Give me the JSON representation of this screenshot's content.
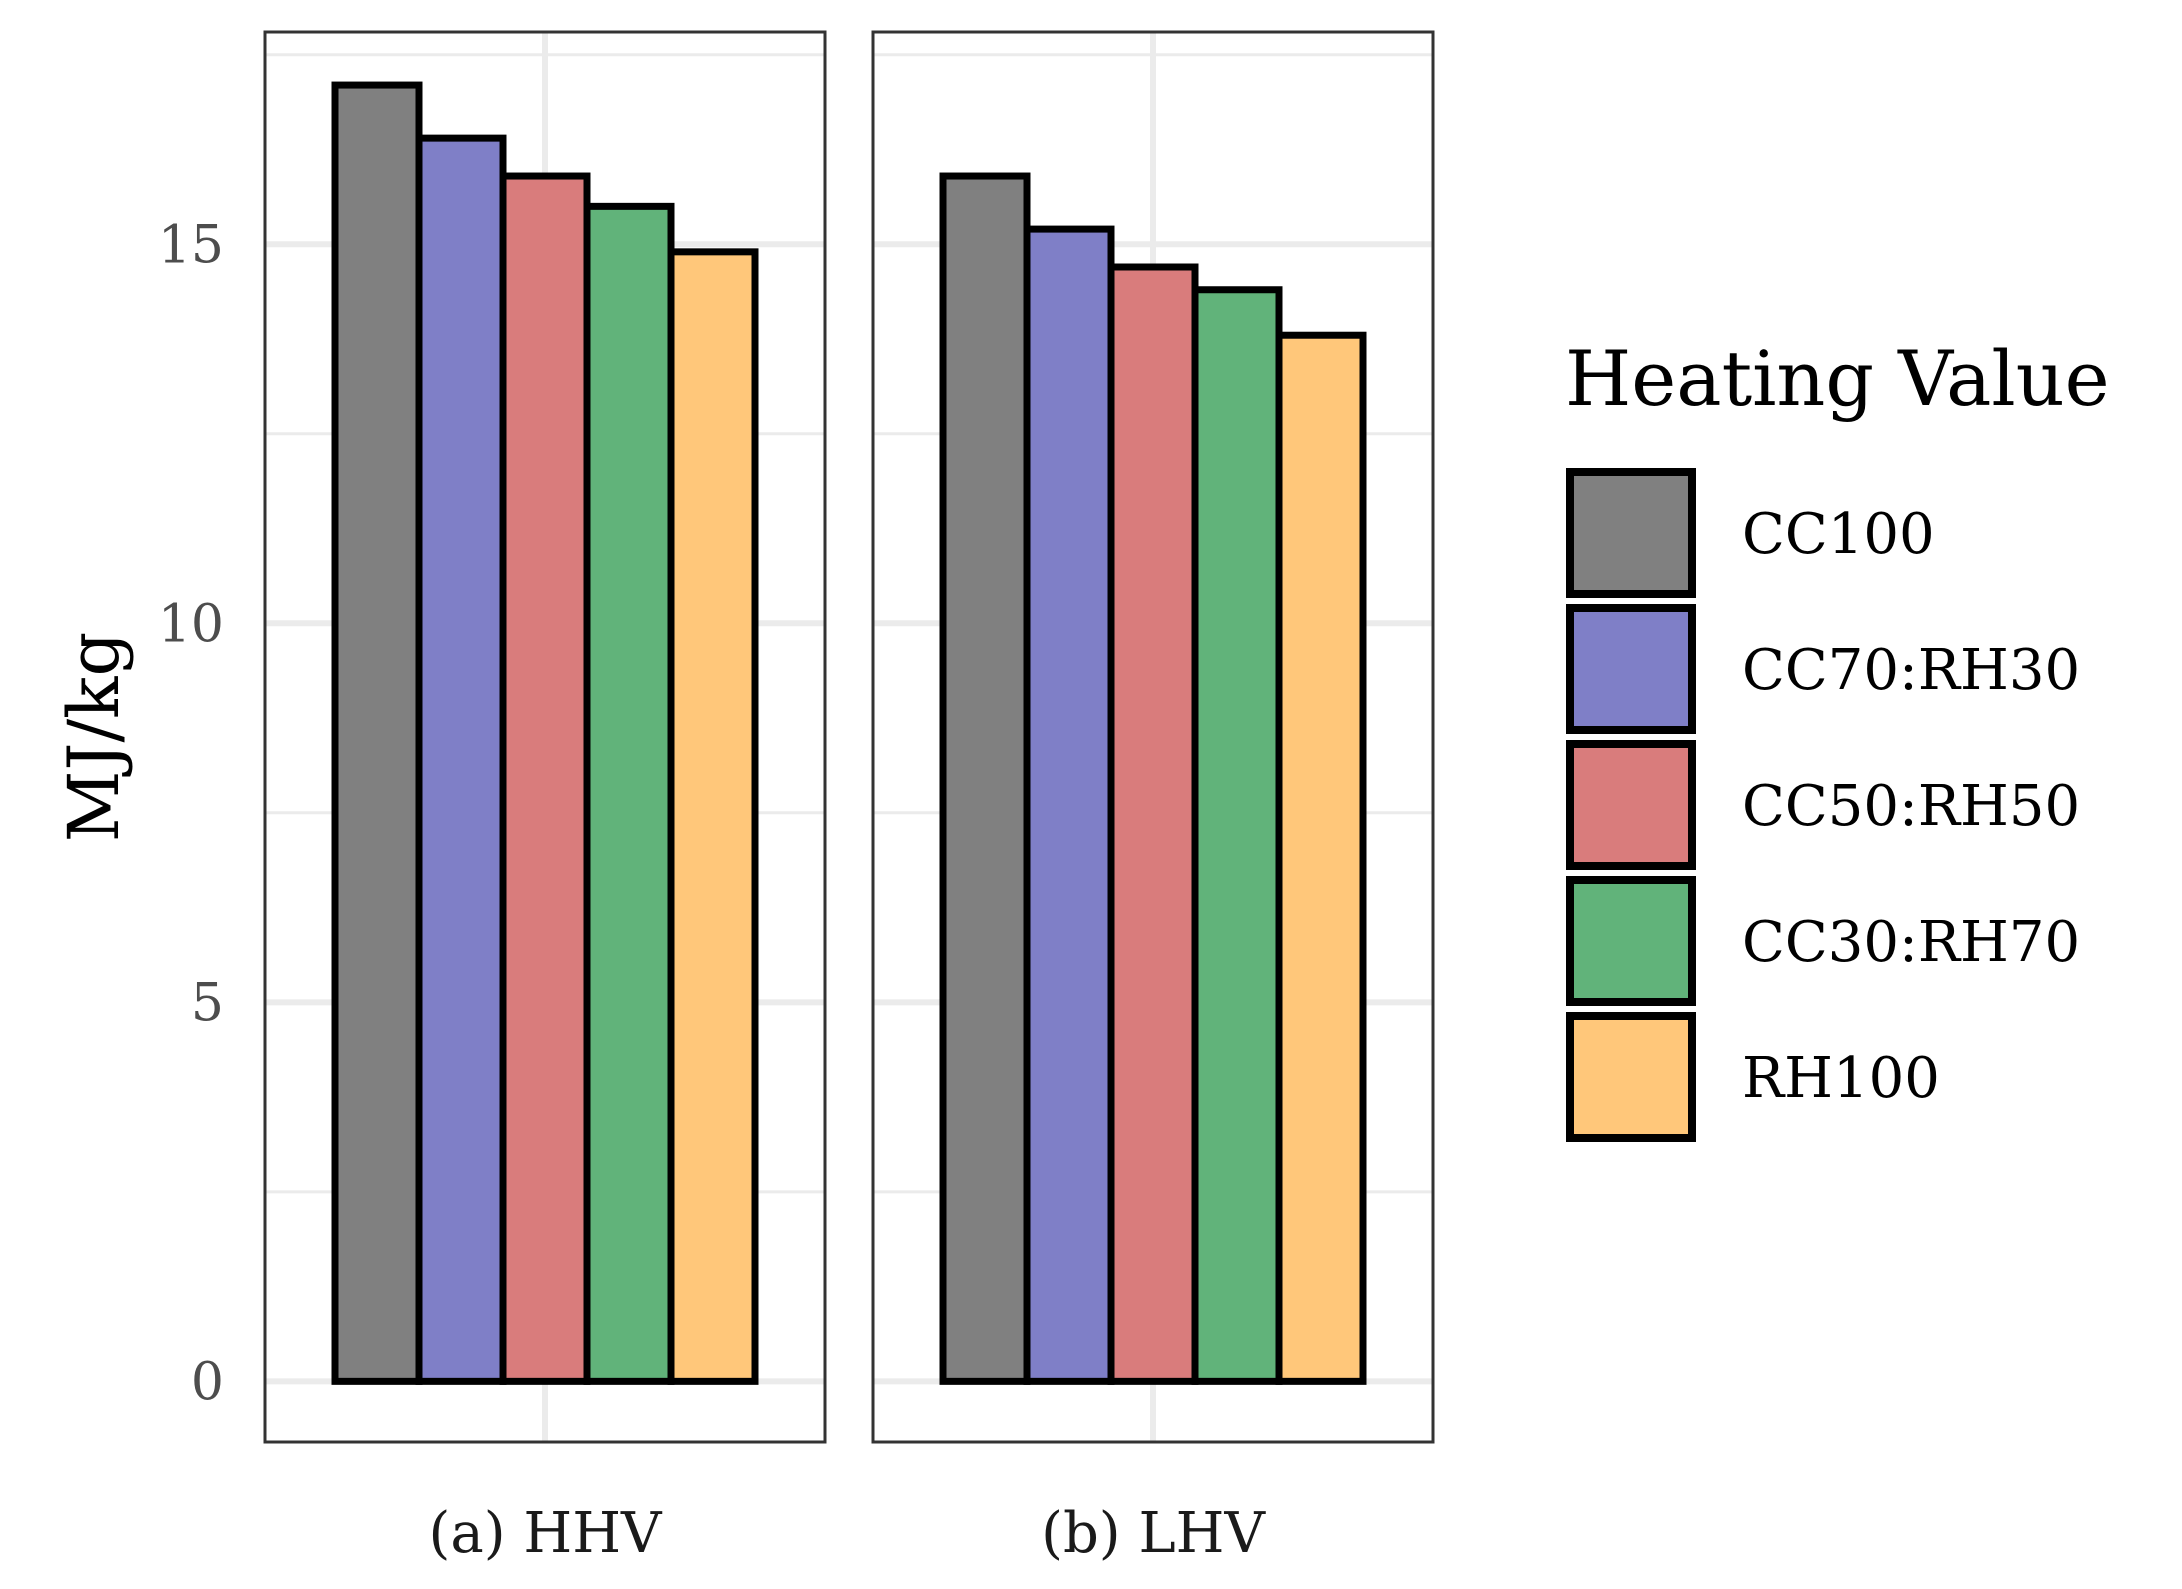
{
  "chart_data": {
    "type": "bar",
    "facets": [
      "(a) HHV",
      "(b) LHV"
    ],
    "categories": [
      "CC100",
      "CC70:RH30",
      "CC50:RH50",
      "CC30:RH70",
      "RH100"
    ],
    "series": [
      {
        "facet": "(a) HHV",
        "values": [
          17.1,
          16.4,
          15.9,
          15.5,
          14.9
        ]
      },
      {
        "facet": "(b) LHV",
        "values": [
          15.9,
          15.2,
          14.7,
          14.4,
          13.8
        ]
      }
    ],
    "colors": [
      "#808080",
      "#7f7fc7",
      "#d97c7c",
      "#61b37a",
      "#ffc77a"
    ],
    "ylabel": "MJ/kg",
    "xlabel": "",
    "yticks": [
      0,
      5,
      10,
      15
    ],
    "ylim": [
      -0.8,
      17.8
    ],
    "grid": true,
    "legend": {
      "title": "Heating Value",
      "position": "right"
    }
  }
}
